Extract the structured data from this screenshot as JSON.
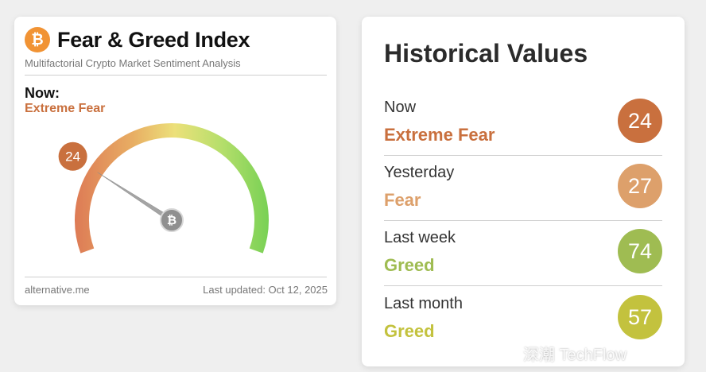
{
  "fear_greed": {
    "title": "Fear & Greed Index",
    "subtitle": "Multifactorial Crypto Market Sentiment Analysis",
    "now_label": "Now:",
    "now_classification": "Extreme Fear",
    "value": "24",
    "value_numeric": 24,
    "gauge_max": 100,
    "logo_icon": "bitcoin-icon",
    "source": "alternative.me",
    "last_updated": "Last updated: Oct 12, 2025"
  },
  "historical": {
    "title": "Historical Values",
    "rows": [
      {
        "period": "Now",
        "classification": "Extreme Fear",
        "value": "24",
        "color": "#c9703e"
      },
      {
        "period": "Yesterday",
        "classification": "Fear",
        "value": "27",
        "color": "#dda06b"
      },
      {
        "period": "Last week",
        "classification": "Greed",
        "value": "74",
        "color": "#9fbc52"
      },
      {
        "period": "Last month",
        "classification": "Greed",
        "value": "57",
        "color": "#c3c23e"
      }
    ]
  },
  "colors": {
    "extreme_fear": "#c9703e",
    "fear": "#dda06b",
    "greed": "#9fbc52",
    "greed_month": "#c3c23e"
  },
  "watermark": "深潮 TechFlow"
}
